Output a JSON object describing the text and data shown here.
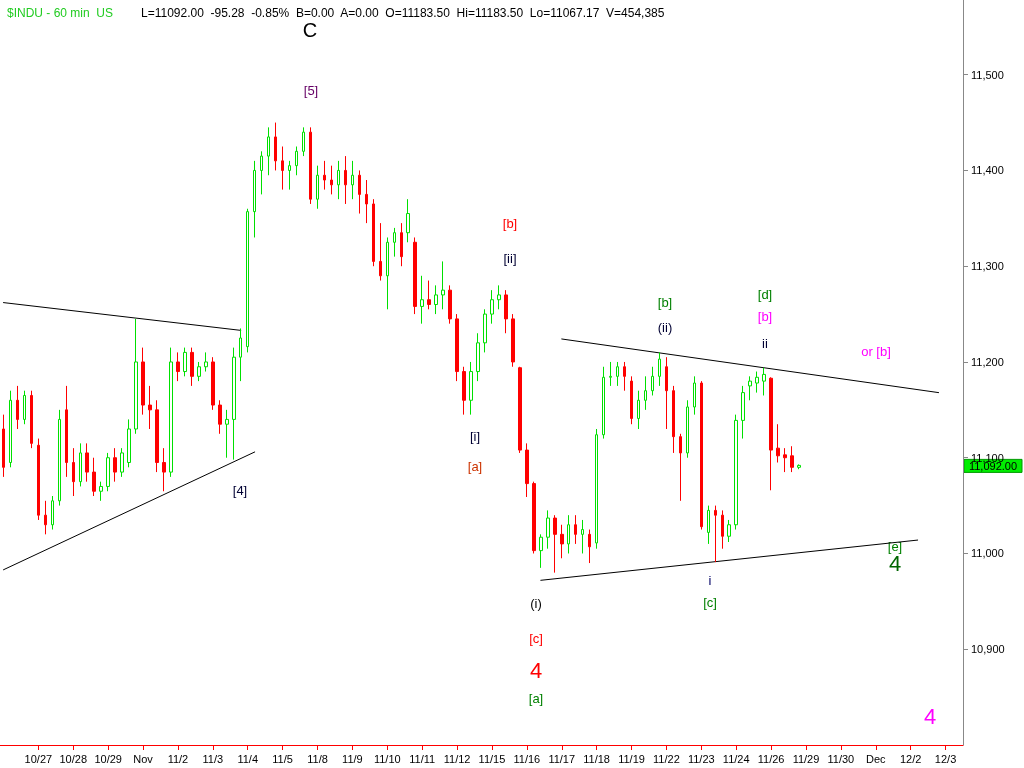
{
  "chart_data": {
    "type": "candlestick",
    "title": "$INDU - 60 min  US",
    "subtitle": "L=11092.00  -95.28  -0.85%  B=0.00  A=0.00  O=11183.50  Hi=11183.50  Lo=11067.17  V=454,385",
    "categories": [
      null,
      null,
      null,
      null,
      null,
      "10/27",
      null,
      null,
      null,
      null,
      "10/28",
      null,
      null,
      null,
      null,
      "10/29",
      null,
      null,
      null,
      null,
      "Nov",
      null,
      null,
      null,
      null,
      "11/2",
      null,
      null,
      null,
      null,
      "11/3",
      null,
      null,
      null,
      null,
      "11/4",
      null,
      null,
      null,
      null,
      "11/5",
      null,
      null,
      null,
      null,
      "11/8",
      null,
      null,
      null,
      null,
      "11/9",
      null,
      null,
      null,
      null,
      "11/10",
      null,
      null,
      null,
      null,
      "11/11",
      null,
      null,
      null,
      null,
      "11/12",
      null,
      null,
      null,
      null,
      "11/15",
      null,
      null,
      null,
      null,
      "11/16",
      null,
      null,
      null,
      null,
      "11/17",
      null,
      null,
      null,
      null,
      "11/18",
      null,
      null,
      null,
      null,
      "11/19",
      null,
      null,
      null,
      null,
      "11/22",
      null,
      null,
      null,
      null,
      "11/23",
      null,
      null,
      null,
      null,
      "11/24",
      null,
      null,
      null,
      null,
      "11/26",
      null,
      null,
      null,
      null,
      "11/29",
      null,
      null,
      null,
      null,
      "11/30",
      null,
      null,
      null,
      null,
      "Dec",
      null,
      null,
      null,
      null,
      "12/2",
      null,
      null,
      null,
      null,
      "12/3",
      null,
      null
    ],
    "ohlc": [
      [
        11130,
        11145,
        11080,
        11090
      ],
      [
        11095,
        11170,
        11090,
        11160
      ],
      [
        11160,
        11175,
        11130,
        11140
      ],
      [
        11140,
        11170,
        11135,
        11165
      ],
      [
        11165,
        11170,
        11110,
        11115
      ],
      [
        11113,
        11120,
        11035,
        11040
      ],
      [
        11040,
        11055,
        11020,
        11030
      ],
      [
        11030,
        11060,
        11025,
        11055
      ],
      [
        11055,
        11150,
        11050,
        11140
      ],
      [
        11150,
        11175,
        11080,
        11095
      ],
      [
        11095,
        11110,
        11060,
        11075
      ],
      [
        11075,
        11115,
        11070,
        11105
      ],
      [
        11105,
        11115,
        11075,
        11085
      ],
      [
        11085,
        11100,
        11060,
        11065
      ],
      [
        11065,
        11075,
        11055,
        11070
      ],
      [
        11070,
        11105,
        11065,
        11100
      ],
      [
        11100,
        11110,
        11075,
        11085
      ],
      [
        11085,
        11110,
        11080,
        11105
      ],
      [
        11095,
        11140,
        11090,
        11130
      ],
      [
        11130,
        11245,
        11125,
        11200
      ],
      [
        11200,
        11215,
        11145,
        11155
      ],
      [
        11155,
        11175,
        11130,
        11150
      ],
      [
        11150,
        11160,
        11085,
        11095
      ],
      [
        11095,
        11110,
        11065,
        11085
      ],
      [
        11085,
        11215,
        11080,
        11200
      ],
      [
        11200,
        11210,
        11180,
        11190
      ],
      [
        11190,
        11215,
        11185,
        11210
      ],
      [
        11210,
        11215,
        11175,
        11185
      ],
      [
        11185,
        11200,
        11180,
        11195
      ],
      [
        11195,
        11210,
        11190,
        11200
      ],
      [
        11200,
        11205,
        11150,
        11155
      ],
      [
        11155,
        11160,
        11125,
        11135
      ],
      [
        11135,
        11150,
        11100,
        11140
      ],
      [
        11140,
        11215,
        11098,
        11205
      ],
      [
        11205,
        11235,
        11180,
        11225
      ],
      [
        11216,
        11360,
        11210,
        11357
      ],
      [
        11357,
        11410,
        11330,
        11400
      ],
      [
        11400,
        11420,
        11375,
        11415
      ],
      [
        11415,
        11445,
        11395,
        11435
      ],
      [
        11435,
        11450,
        11400,
        11410
      ],
      [
        11410,
        11425,
        11380,
        11400
      ],
      [
        11400,
        11410,
        11380,
        11405
      ],
      [
        11405,
        11425,
        11395,
        11420
      ],
      [
        11420,
        11445,
        11415,
        11440
      ],
      [
        11440,
        11445,
        11365,
        11370
      ],
      [
        11370,
        11405,
        11360,
        11395
      ],
      [
        11395,
        11410,
        11380,
        11390
      ],
      [
        11390,
        11405,
        11375,
        11385
      ],
      [
        11385,
        11410,
        11370,
        11400
      ],
      [
        11400,
        11415,
        11365,
        11385
      ],
      [
        11385,
        11410,
        11370,
        11395
      ],
      [
        11395,
        11400,
        11355,
        11375
      ],
      [
        11375,
        11390,
        11345,
        11365
      ],
      [
        11365,
        11370,
        11300,
        11305
      ],
      [
        11305,
        11345,
        11285,
        11290
      ],
      [
        11290,
        11330,
        11255,
        11325
      ],
      [
        11325,
        11340,
        11310,
        11335
      ],
      [
        11335,
        11345,
        11300,
        11310
      ],
      [
        11335,
        11370,
        11325,
        11355
      ],
      [
        11325,
        11330,
        11250,
        11258
      ],
      [
        11258,
        11290,
        11240,
        11265
      ],
      [
        11265,
        11285,
        11255,
        11260
      ],
      [
        11260,
        11280,
        11250,
        11270
      ],
      [
        11270,
        11305,
        11255,
        11275
      ],
      [
        11275,
        11280,
        11240,
        11245
      ],
      [
        11245,
        11250,
        11180,
        11190
      ],
      [
        11190,
        11195,
        11145,
        11160
      ],
      [
        11160,
        11200,
        11145,
        11190
      ],
      [
        11190,
        11230,
        11180,
        11220
      ],
      [
        11220,
        11255,
        11210,
        11250
      ],
      [
        11250,
        11275,
        11240,
        11265
      ],
      [
        11265,
        11280,
        11255,
        11270
      ],
      [
        11270,
        11275,
        11230,
        11245
      ],
      [
        11245,
        11250,
        11195,
        11200
      ],
      [
        11194,
        11195,
        11105,
        11108
      ],
      [
        11108,
        11115,
        11059,
        11073
      ],
      [
        11073,
        11075,
        11000,
        11003
      ],
      [
        11003,
        11020,
        10985,
        11017
      ],
      [
        11017,
        11045,
        11005,
        11037
      ],
      [
        11037,
        11040,
        10980,
        11020
      ],
      [
        11020,
        11030,
        10995,
        11010
      ],
      [
        11010,
        11040,
        11000,
        11030
      ],
      [
        11030,
        11040,
        11010,
        11020
      ],
      [
        11020,
        11035,
        11000,
        11025
      ],
      [
        11020,
        11025,
        10990,
        11007
      ],
      [
        11011,
        11130,
        11005,
        11124
      ],
      [
        11124,
        11195,
        11120,
        11184
      ],
      [
        11184,
        11200,
        11175,
        11185
      ],
      [
        11185,
        11200,
        11175,
        11195
      ],
      [
        11195,
        11200,
        11170,
        11185
      ],
      [
        11180,
        11185,
        11135,
        11141
      ],
      [
        11141,
        11170,
        11130,
        11160
      ],
      [
        11160,
        11185,
        11150,
        11170
      ],
      [
        11170,
        11195,
        11165,
        11185
      ],
      [
        11185,
        11210,
        11175,
        11203
      ],
      [
        11195,
        11205,
        11130,
        11170
      ],
      [
        11170,
        11175,
        11105,
        11122
      ],
      [
        11122,
        11125,
        11055,
        11105
      ],
      [
        11105,
        11160,
        11100,
        11153
      ],
      [
        11153,
        11185,
        11145,
        11178
      ],
      [
        11178,
        11180,
        11025,
        11028
      ],
      [
        11022,
        11050,
        11010,
        11045
      ],
      [
        11045,
        11050,
        10991,
        11040
      ],
      [
        11040,
        11045,
        11005,
        11018
      ],
      [
        11018,
        11035,
        11012,
        11030
      ],
      [
        11030,
        11145,
        11025,
        11139
      ],
      [
        11139,
        11175,
        11120,
        11168
      ],
      [
        11175,
        11185,
        11160,
        11180
      ],
      [
        11178,
        11190,
        11168,
        11184
      ],
      [
        11180,
        11194,
        11165,
        11187
      ],
      [
        11183,
        11184,
        11066,
        11108
      ],
      [
        11110,
        11135,
        11095,
        11102
      ],
      [
        11103,
        11110,
        11085,
        11100
      ],
      [
        11102,
        11112,
        11085,
        11090
      ],
      [
        11090,
        11093,
        11088,
        11092
      ],
      null,
      null,
      null,
      null,
      null,
      null,
      null,
      null,
      null,
      null,
      null,
      null,
      null,
      null,
      null,
      null,
      null,
      null,
      null,
      null,
      null,
      null,
      null
    ],
    "series": [
      {
        "type": "line",
        "color": "#000000",
        "values": [
          11262,
          null,
          null,
          null,
          null,
          null,
          null,
          null,
          null,
          null,
          null,
          null,
          null,
          null,
          null,
          null,
          null,
          null,
          null,
          null,
          null,
          null,
          null,
          null,
          null,
          null,
          null,
          null,
          null,
          null,
          null,
          null,
          null,
          null,
          11233,
          null,
          null,
          null,
          null,
          null,
          null,
          null,
          null,
          null,
          null,
          null,
          null,
          null,
          null,
          null,
          null,
          null,
          null,
          null,
          null,
          null,
          null,
          null,
          null,
          null,
          null,
          null,
          null,
          null,
          null,
          null,
          null,
          null,
          null,
          null,
          null,
          null,
          null,
          null,
          null,
          null,
          null,
          null,
          null,
          null,
          null,
          null,
          null,
          null,
          null,
          null,
          null,
          null,
          null,
          null,
          null,
          null,
          null,
          null,
          null,
          null,
          null,
          null,
          null,
          null,
          null,
          null,
          null,
          null,
          null,
          null,
          null,
          null,
          null,
          null,
          null,
          null,
          null,
          null,
          null,
          null,
          null,
          null,
          null,
          null,
          null,
          null,
          null,
          null,
          null,
          null,
          null,
          null,
          null,
          null,
          null,
          null,
          null,
          null,
          null,
          null,
          null,
          null
        ]
      },
      {
        "type": "line",
        "color": "#000000",
        "values": [
          10983,
          null,
          null,
          null,
          null,
          null,
          null,
          null,
          null,
          null,
          null,
          null,
          null,
          null,
          null,
          null,
          null,
          null,
          null,
          null,
          null,
          null,
          null,
          null,
          null,
          null,
          null,
          null,
          null,
          null,
          null,
          null,
          null,
          null,
          null,
          null,
          11106,
          null,
          null,
          null,
          null,
          null,
          null,
          null,
          null,
          null,
          null,
          null,
          null,
          null,
          null,
          null,
          null,
          null,
          null,
          null,
          null,
          null,
          null,
          null,
          null,
          null,
          null,
          null,
          null,
          null,
          null,
          null,
          null,
          null,
          null,
          null,
          null,
          null,
          null,
          null,
          null,
          null,
          null,
          null,
          null,
          null,
          null,
          null,
          null,
          null,
          null,
          null,
          null,
          null,
          null,
          null,
          null,
          null,
          null,
          null,
          null,
          null,
          null,
          null,
          null,
          null,
          null,
          null,
          null,
          null,
          null,
          null,
          null,
          null,
          null,
          null,
          null,
          null,
          null,
          null,
          null,
          null,
          null,
          null,
          null,
          null,
          null,
          null,
          null,
          null,
          null,
          null,
          null,
          null,
          null,
          null,
          null,
          null,
          null,
          null,
          null,
          null
        ]
      },
      {
        "type": "line",
        "color": "#000000",
        "values": [
          null,
          null,
          null,
          null,
          null,
          null,
          null,
          null,
          null,
          null,
          null,
          null,
          null,
          null,
          null,
          null,
          null,
          null,
          null,
          null,
          null,
          null,
          null,
          null,
          null,
          null,
          null,
          null,
          null,
          null,
          null,
          null,
          null,
          null,
          null,
          null,
          null,
          null,
          null,
          null,
          null,
          null,
          null,
          null,
          null,
          null,
          null,
          null,
          null,
          null,
          null,
          null,
          null,
          null,
          null,
          null,
          null,
          null,
          null,
          null,
          null,
          null,
          null,
          null,
          null,
          null,
          null,
          null,
          null,
          null,
          null,
          null,
          null,
          null,
          null,
          null,
          null,
          null,
          null,
          null,
          11224,
          null,
          null,
          null,
          null,
          null,
          null,
          null,
          null,
          null,
          null,
          null,
          null,
          null,
          null,
          null,
          null,
          null,
          null,
          null,
          null,
          null,
          null,
          null,
          null,
          null,
          null,
          null,
          null,
          null,
          null,
          null,
          null,
          null,
          null,
          null,
          null,
          null,
          null,
          null,
          null,
          null,
          null,
          null,
          null,
          null,
          null,
          null,
          null,
          null,
          null,
          null,
          null,
          null,
          11168,
          null,
          null,
          null
        ]
      },
      {
        "type": "line",
        "color": "#000000",
        "values": [
          null,
          null,
          null,
          null,
          null,
          null,
          null,
          null,
          null,
          null,
          null,
          null,
          null,
          null,
          null,
          null,
          null,
          null,
          null,
          null,
          null,
          null,
          null,
          null,
          null,
          null,
          null,
          null,
          null,
          null,
          null,
          null,
          null,
          null,
          null,
          null,
          null,
          null,
          null,
          null,
          null,
          null,
          null,
          null,
          null,
          null,
          null,
          null,
          null,
          null,
          null,
          null,
          null,
          null,
          null,
          null,
          null,
          null,
          null,
          null,
          null,
          null,
          null,
          null,
          null,
          null,
          null,
          null,
          null,
          null,
          null,
          null,
          null,
          null,
          null,
          null,
          null,
          10972,
          null,
          null,
          null,
          null,
          null,
          null,
          null,
          null,
          null,
          null,
          null,
          null,
          null,
          null,
          null,
          null,
          null,
          null,
          null,
          null,
          null,
          null,
          null,
          null,
          null,
          null,
          null,
          null,
          null,
          null,
          null,
          null,
          null,
          null,
          null,
          null,
          null,
          null,
          null,
          null,
          null,
          null,
          null,
          null,
          null,
          null,
          null,
          null,
          null,
          null,
          null,
          null,
          null,
          11014,
          null,
          null,
          null,
          null,
          null,
          null
        ]
      }
    ],
    "marker": "none",
    "ylim": [
      10800,
      11578
    ],
    "yticks": [
      {
        "value": 10900,
        "label": "10,900"
      },
      {
        "value": 11000,
        "label": "11,000"
      },
      {
        "value": 11100,
        "label": "11,100"
      },
      {
        "value": 11200,
        "label": "11,200"
      },
      {
        "value": 11300,
        "label": "11,300"
      },
      {
        "value": 11400,
        "label": "11,400"
      },
      {
        "value": 11500,
        "label": "11,500"
      }
    ],
    "annotations": [
      "C",
      "[5]",
      "[b]",
      "[ii]",
      "[i]",
      "[a]",
      "[4]",
      "(i)",
      "[c]",
      "4",
      "[a]",
      "[b]",
      "(ii)",
      "[d]",
      "[b]",
      "ii",
      "or [b]",
      "i",
      "[c]",
      "[e]",
      "4",
      "4",
      "11,092.00"
    ]
  }
}
